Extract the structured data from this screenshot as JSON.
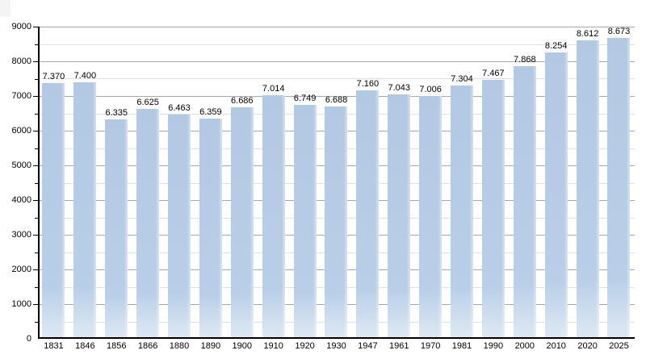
{
  "chart_data": {
    "type": "bar",
    "title": "",
    "xlabel": "",
    "ylabel": "",
    "categories": [
      "1831",
      "1846",
      "1856",
      "1866",
      "1880",
      "1890",
      "1900",
      "1910",
      "1920",
      "1930",
      "1947",
      "1961",
      "1970",
      "1981",
      "1990",
      "2000",
      "2010",
      "2020",
      "2025"
    ],
    "values": [
      7370,
      7400,
      6335,
      6625,
      6463,
      6359,
      6686,
      7014,
      6749,
      6688,
      7160,
      7043,
      7006,
      7304,
      7467,
      7868,
      8254,
      8612,
      8673
    ],
    "value_labels": [
      "7.370",
      "7.400",
      "6.335",
      "6.625",
      "6.463",
      "6.359",
      "6.686",
      "7.014",
      "6.749",
      "6.688",
      "7.160",
      "7.043",
      "7.006",
      "7.304",
      "7.467",
      "7.868",
      "8.254",
      "8.612",
      "8.673"
    ],
    "ylim": [
      0,
      9000
    ],
    "y_major_step": 1000,
    "y_minor_step": 500,
    "y_tick_labels": [
      "0",
      "1000",
      "2000",
      "3000",
      "4000",
      "5000",
      "6000",
      "7000",
      "8000",
      "9000"
    ],
    "grid": true,
    "legend": null,
    "colors": {
      "bar_top": "#b3c9e3",
      "bar_mid": "#b9cfe8",
      "bar_bottom": "#dfe9f4",
      "major_grid": "#a8a8a8",
      "minor_grid": "#e0e0e0",
      "axis": "#000000",
      "text": "#000000",
      "background": "#ffffff",
      "corner_artifact": "#f4f4f4"
    }
  }
}
